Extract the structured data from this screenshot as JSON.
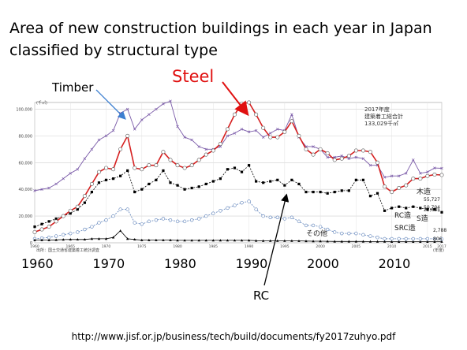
{
  "slide": {
    "title_line1": "Area of new construction buildings in each year in Japan",
    "title_line2": "classified by structural type",
    "url": "http://www.jisf.or.jp/business/tech/build/documents/fy2017zuhyo.pdf"
  },
  "annotations": {
    "timber": "Timber",
    "steel": "Steel",
    "rc": "RC"
  },
  "chart_data": {
    "type": "line",
    "title": "",
    "unit_label": "(千㎡)",
    "x_unit_label": "(年度)",
    "xlabel": "",
    "ylabel": "",
    "xlim": [
      1960,
      2017
    ],
    "ylim": [
      0,
      105000
    ],
    "y_ticks": [
      0,
      20000,
      40000,
      60000,
      80000,
      100000
    ],
    "y_tick_labels": [
      "0",
      "20,000",
      "40,000",
      "60,000",
      "80,000",
      "100,000"
    ],
    "x_ticks_small": [
      1960,
      1965,
      1970,
      1975,
      1980,
      1985,
      1990,
      1995,
      2000,
      2005,
      2010,
      2015,
      2017
    ],
    "x_big_labels": [
      "1960",
      "1970",
      "1980",
      "1990",
      "2000",
      "2010"
    ],
    "x_big_values": [
      1960,
      1970,
      1980,
      1990,
      2000,
      2010
    ],
    "inset_title": "2017年度",
    "inset_line2": "建築着工総合計",
    "inset_line3": "133,029千㎡",
    "source_note": "出所：国土交通省建築着工統計調査",
    "grid": true,
    "series": [
      {
        "name": "木造",
        "end_label": "55,727",
        "color": "#7a5aa8",
        "marker": "x",
        "x": [
          1960,
          1961,
          1962,
          1963,
          1964,
          1965,
          1966,
          1967,
          1968,
          1969,
          1970,
          1971,
          1972,
          1973,
          1974,
          1975,
          1976,
          1977,
          1978,
          1979,
          1980,
          1981,
          1982,
          1983,
          1984,
          1985,
          1986,
          1987,
          1988,
          1989,
          1990,
          1991,
          1992,
          1993,
          1994,
          1995,
          1996,
          1997,
          1998,
          1999,
          2000,
          2001,
          2002,
          2003,
          2004,
          2005,
          2006,
          2007,
          2008,
          2009,
          2010,
          2011,
          2012,
          2013,
          2014,
          2015,
          2016,
          2017
        ],
        "values": [
          39000,
          40000,
          41000,
          44000,
          48000,
          52000,
          55000,
          63000,
          70000,
          77000,
          80000,
          84000,
          97000,
          100000,
          85000,
          92000,
          96000,
          100000,
          104000,
          106000,
          87000,
          79000,
          77000,
          72000,
          70000,
          70000,
          72000,
          80000,
          82000,
          85000,
          83000,
          84000,
          79000,
          82000,
          85000,
          84000,
          96000,
          79000,
          72000,
          72000,
          70000,
          64000,
          64000,
          65000,
          63000,
          64000,
          63000,
          58000,
          58000,
          49000,
          50000,
          50000,
          52000,
          62000,
          52000,
          53000,
          56000,
          55727
        ]
      },
      {
        "name": "S造",
        "end_label": "50,704",
        "color": "#d62020",
        "marker": "o",
        "x": [
          1960,
          1961,
          1962,
          1963,
          1964,
          1965,
          1966,
          1967,
          1968,
          1969,
          1970,
          1971,
          1972,
          1973,
          1974,
          1975,
          1976,
          1977,
          1978,
          1979,
          1980,
          1981,
          1982,
          1983,
          1984,
          1985,
          1986,
          1987,
          1988,
          1989,
          1990,
          1991,
          1992,
          1993,
          1994,
          1995,
          1996,
          1997,
          1998,
          1999,
          2000,
          2001,
          2002,
          2003,
          2004,
          2005,
          2006,
          2007,
          2008,
          2009,
          2010,
          2011,
          2012,
          2013,
          2014,
          2015,
          2016,
          2017
        ],
        "values": [
          8000,
          10000,
          12000,
          16000,
          20000,
          24000,
          27000,
          35000,
          44000,
          53000,
          56000,
          55000,
          70000,
          80000,
          56000,
          55000,
          58000,
          58000,
          68000,
          62000,
          58000,
          56000,
          58000,
          62000,
          66000,
          69000,
          74000,
          85000,
          96000,
          104000,
          105000,
          96000,
          86000,
          79000,
          79000,
          83000,
          91000,
          80000,
          70000,
          66000,
          70000,
          67000,
          62000,
          63000,
          65000,
          69000,
          69000,
          68000,
          60000,
          42000,
          38000,
          41000,
          43000,
          48000,
          48000,
          50000,
          51000,
          50704
        ]
      },
      {
        "name": "RC造",
        "end_label": "22,825",
        "color": "#000000",
        "marker": "s",
        "x": [
          1960,
          1961,
          1962,
          1963,
          1964,
          1965,
          1966,
          1967,
          1968,
          1969,
          1970,
          1971,
          1972,
          1973,
          1974,
          1975,
          1976,
          1977,
          1978,
          1979,
          1980,
          1981,
          1982,
          1983,
          1984,
          1985,
          1986,
          1987,
          1988,
          1989,
          1990,
          1991,
          1992,
          1993,
          1994,
          1995,
          1996,
          1997,
          1998,
          1999,
          2000,
          2001,
          2002,
          2003,
          2004,
          2005,
          2006,
          2007,
          2008,
          2009,
          2010,
          2011,
          2012,
          2013,
          2014,
          2015,
          2016,
          2017
        ],
        "values": [
          12000,
          14000,
          16000,
          18000,
          20000,
          22000,
          25000,
          30000,
          38000,
          45000,
          47000,
          48000,
          50000,
          54000,
          38000,
          40000,
          44000,
          47000,
          54000,
          45000,
          43000,
          40000,
          41000,
          42000,
          44000,
          46000,
          48000,
          55000,
          56000,
          53000,
          58000,
          46000,
          45000,
          46000,
          47000,
          43000,
          47000,
          44000,
          38000,
          38000,
          38000,
          37000,
          38000,
          39000,
          39000,
          47000,
          47000,
          35000,
          37000,
          24000,
          26000,
          27000,
          26000,
          27000,
          26000,
          25000,
          25000,
          22825
        ]
      },
      {
        "name": "SRC造",
        "end_label": "2,788",
        "color": "#5a7fb8",
        "marker": "o",
        "x": [
          1960,
          1961,
          1962,
          1963,
          1964,
          1965,
          1966,
          1967,
          1968,
          1969,
          1970,
          1971,
          1972,
          1973,
          1974,
          1975,
          1976,
          1977,
          1978,
          1979,
          1980,
          1981,
          1982,
          1983,
          1984,
          1985,
          1986,
          1987,
          1988,
          1989,
          1990,
          1991,
          1992,
          1993,
          1994,
          1995,
          1996,
          1997,
          1998,
          1999,
          2000,
          2001,
          2002,
          2003,
          2004,
          2005,
          2006,
          2007,
          2008,
          2009,
          2010,
          2011,
          2012,
          2013,
          2014,
          2015,
          2016,
          2017
        ],
        "values": [
          3000,
          3500,
          4000,
          5000,
          6000,
          7000,
          8000,
          10000,
          12000,
          15000,
          17000,
          20000,
          25000,
          25000,
          15000,
          14000,
          16000,
          17000,
          18000,
          17000,
          16000,
          16000,
          17000,
          18000,
          20000,
          22000,
          24000,
          26000,
          28000,
          30000,
          31000,
          25000,
          20000,
          19000,
          19000,
          18000,
          19000,
          16000,
          13000,
          13000,
          12000,
          10000,
          8000,
          7000,
          7000,
          7000,
          6000,
          5000,
          4000,
          3000,
          3000,
          3000,
          3000,
          3000,
          3000,
          3000,
          3000,
          2788
        ]
      },
      {
        "name": "その他",
        "end_label": "806",
        "color": "#000000",
        "marker": "^",
        "x": [
          1960,
          1961,
          1962,
          1963,
          1964,
          1965,
          1966,
          1967,
          1968,
          1969,
          1970,
          1971,
          1972,
          1973,
          1974,
          1975,
          1976,
          1977,
          1978,
          1979,
          1980,
          1981,
          1982,
          1983,
          1984,
          1985,
          1986,
          1987,
          1988,
          1989,
          1990,
          1991,
          1992,
          1993,
          1994,
          1995,
          1996,
          1997,
          1998,
          1999,
          2000,
          2001,
          2002,
          2003,
          2004,
          2005,
          2006,
          2007,
          2008,
          2009,
          2010,
          2011,
          2012,
          2013,
          2014,
          2015,
          2016,
          2017
        ],
        "values": [
          2000,
          2000,
          2000,
          2200,
          2400,
          2500,
          2500,
          2500,
          3000,
          3000,
          3000,
          4000,
          9000,
          3000,
          2500,
          2000,
          2000,
          2000,
          2000,
          2000,
          1800,
          1800,
          1800,
          1800,
          1800,
          1800,
          1800,
          1800,
          1800,
          1800,
          1800,
          1600,
          1500,
          1500,
          1500,
          1500,
          1500,
          1400,
          1300,
          1200,
          1200,
          1100,
          1000,
          1000,
          1000,
          1000,
          1000,
          900,
          900,
          900,
          800,
          800,
          800,
          800,
          800,
          800,
          800,
          806
        ]
      }
    ]
  }
}
